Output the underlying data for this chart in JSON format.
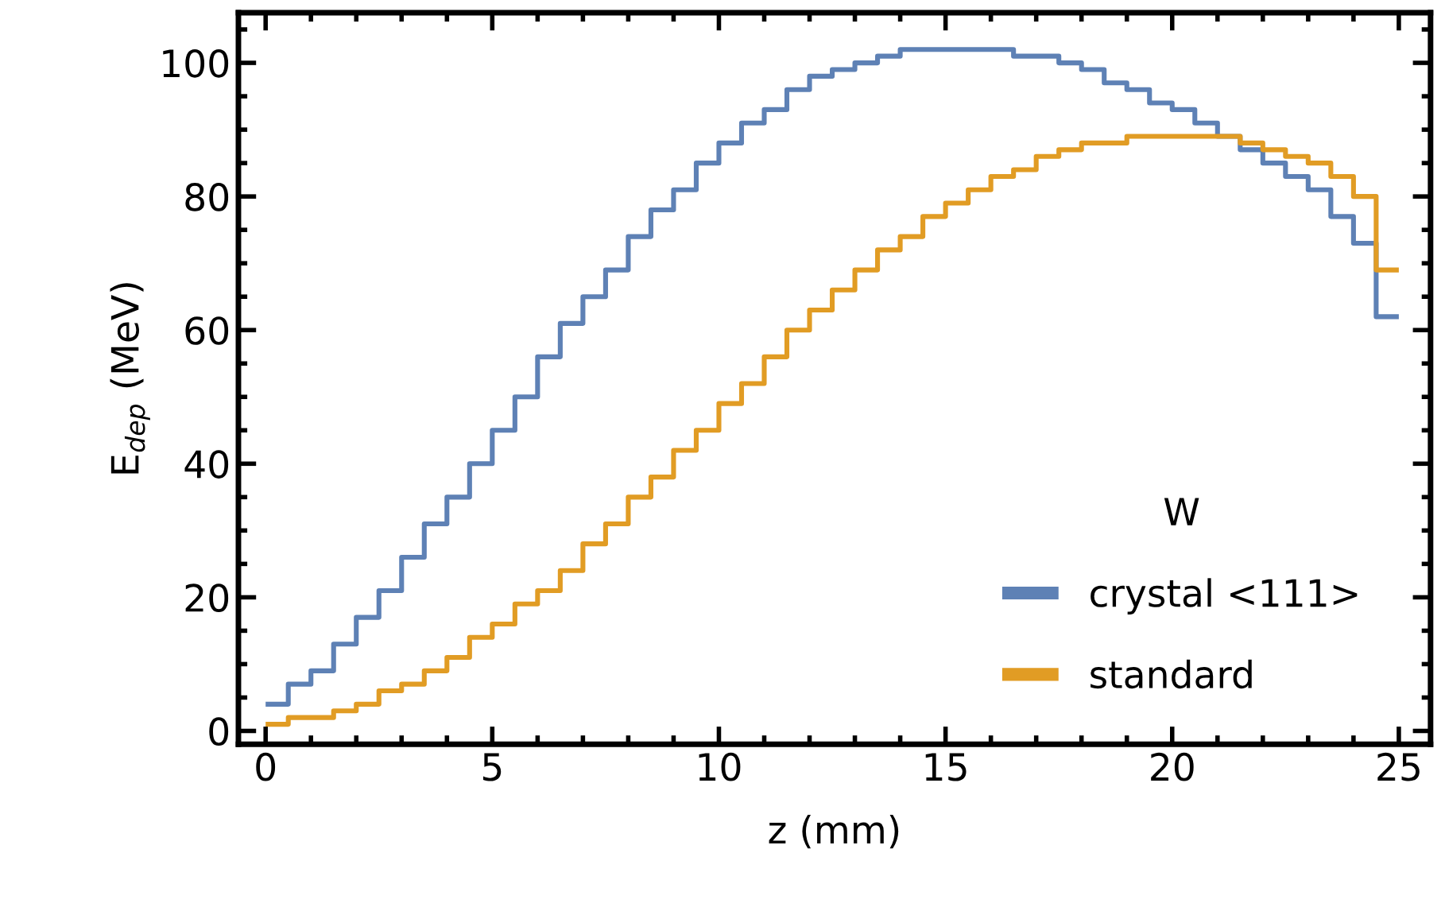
{
  "chart_data": {
    "type": "histogram",
    "xlabel": "z (mm)",
    "ylabel": "E$_{dep}$ (MeV)",
    "legend_title": "W",
    "bins": [
      0,
      0.5,
      1,
      1.5,
      2,
      2.5,
      3,
      3.5,
      4,
      4.5,
      5,
      5.5,
      6,
      6.5,
      7,
      7.5,
      8,
      8.5,
      9,
      9.5,
      10,
      10.5,
      11,
      11.5,
      12,
      12.5,
      13,
      13.5,
      14,
      14.5,
      15,
      15.5,
      16,
      16.5,
      17,
      17.5,
      18,
      18.5,
      19,
      19.5,
      20,
      20.5,
      21,
      21.5,
      22,
      22.5,
      23,
      23.5,
      24,
      24.5,
      25
    ],
    "series": [
      {
        "name": "crystal <111>",
        "color": "#5e81b5",
        "values": [
          4,
          7,
          9,
          13,
          17,
          21,
          26,
          31,
          35,
          40,
          45,
          50,
          56,
          61,
          65,
          69,
          74,
          78,
          81,
          85,
          88,
          91,
          93,
          96,
          98,
          99,
          100,
          101,
          102,
          102,
          102,
          102,
          102,
          101,
          101,
          100,
          99,
          97,
          96,
          94,
          93,
          91,
          89,
          87,
          85,
          83,
          81,
          77,
          73,
          62
        ]
      },
      {
        "name": "standard",
        "color": "#e19c24",
        "values": [
          1,
          2,
          2,
          3,
          4,
          6,
          7,
          9,
          11,
          14,
          16,
          19,
          21,
          24,
          28,
          31,
          35,
          38,
          42,
          45,
          49,
          52,
          56,
          60,
          63,
          66,
          69,
          72,
          74,
          77,
          79,
          81,
          83,
          84,
          86,
          87,
          88,
          88,
          89,
          89,
          89,
          89,
          89,
          88,
          87,
          86,
          85,
          83,
          80,
          69
        ]
      }
    ],
    "xlim": [
      -0.6,
      25.7
    ],
    "ylim": [
      -2,
      107.5
    ],
    "xticks": [
      0,
      5,
      10,
      15,
      20,
      25
    ],
    "yticks": [
      0,
      20,
      40,
      60,
      80,
      100
    ],
    "grid": false,
    "legend": "bottom right"
  }
}
